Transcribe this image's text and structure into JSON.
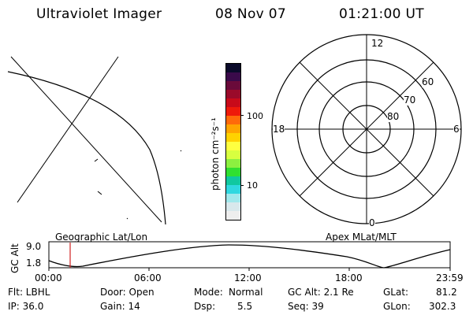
{
  "header": {
    "title": "Ultraviolet Imager",
    "date": "08 Nov 07",
    "time": "01:21:00 UT"
  },
  "colorbar": {
    "unit_label": "photon cm⁻²s⁻¹",
    "tick_labels": [
      "100",
      "10"
    ],
    "colors": [
      "#0a0a2a",
      "#3a0a4a",
      "#6a0a3a",
      "#9a0a2a",
      "#c80a1a",
      "#ee1a0a",
      "#ff6a0a",
      "#ffa500",
      "#ffd200",
      "#ffff40",
      "#d8ff40",
      "#8cf040",
      "#30e030",
      "#10c8a0",
      "#30d8e0",
      "#a0e8ec",
      "#d8e8ec",
      "#eeeeee"
    ]
  },
  "polar_plot": {
    "clock_labels": {
      "top": "12",
      "left": "18",
      "right": "6",
      "bottom": "0"
    },
    "lat_labels": [
      "60",
      "70",
      "80"
    ]
  },
  "timeline": {
    "left_label": "Geographic Lat/Lon",
    "right_label": "Apex MLat/MLT",
    "axis_title": "GC Alt",
    "y_labels": [
      "9.0",
      "1.8"
    ],
    "x_labels": [
      "00:00",
      "06:00",
      "12:00",
      "18:00",
      "23:59"
    ],
    "current_time_color": "#d02020"
  },
  "info": {
    "flt": "Flt: LBHL",
    "ip": "IP: 36.0",
    "door": "Door: Open",
    "gain": "Gain: 14",
    "mode_label": "Mode:",
    "mode_value": "Normal",
    "dsp_label": "Dsp:",
    "dsp_value": "5.5",
    "gc_alt": "GC Alt: 2.1 Re",
    "seq": "Seq: 39",
    "glat_label": "GLat:",
    "glat_value": "81.2",
    "glon_label": "GLon:",
    "glon_value": "302.3"
  }
}
